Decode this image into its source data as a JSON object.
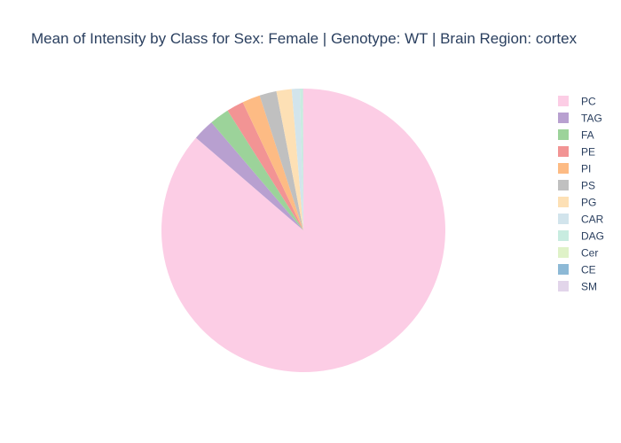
{
  "chart_data": {
    "type": "pie",
    "title": "Mean of Intensity by Class for Sex: Female | Genotype: WT | Brain Region: cortex",
    "start": "top",
    "direction": "clockwise",
    "legend_position": "right",
    "slices": [
      {
        "label": "PC",
        "value": 84.6,
        "color": "#fccde5"
      },
      {
        "label": "TAG",
        "value": 2.4,
        "color": "#b8a0d0"
      },
      {
        "label": "FA",
        "value": 2.2,
        "color": "#9cd39a"
      },
      {
        "label": "PE",
        "value": 1.9,
        "color": "#f29494"
      },
      {
        "label": "PI",
        "value": 2.0,
        "color": "#fdbb84"
      },
      {
        "label": "PS",
        "value": 1.9,
        "color": "#c0c0c0"
      },
      {
        "label": "PG",
        "value": 1.7,
        "color": "#fde0b5"
      },
      {
        "label": "CAR",
        "value": 0.9,
        "color": "#d2e4ec"
      },
      {
        "label": "DAG",
        "value": 0.3,
        "color": "#c8ece0"
      },
      {
        "label": "Cer",
        "value": 0.03,
        "color": "#dff2c8"
      },
      {
        "label": "CE",
        "value": 0.03,
        "color": "#8db9d6"
      },
      {
        "label": "SM",
        "value": 0.03,
        "color": "#e2d5ea"
      }
    ]
  }
}
